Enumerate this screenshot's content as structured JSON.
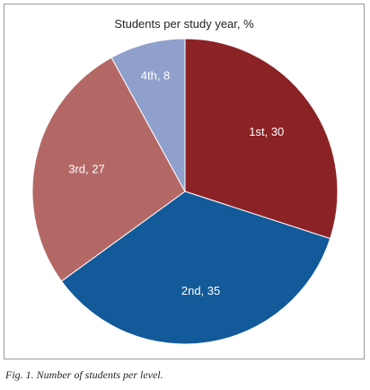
{
  "chart_data": {
    "type": "pie",
    "title": "Students per study year, %",
    "slices": [
      {
        "label": "1st",
        "value": 30,
        "display": "1st, 30",
        "color": "#8b2326",
        "text_color": "#ffffff"
      },
      {
        "label": "2nd",
        "value": 35,
        "display": "2nd, 35",
        "color": "#125a99",
        "text_color": "#ffffff"
      },
      {
        "label": "3rd",
        "value": 27,
        "display": "3rd, 27",
        "color": "#b46866",
        "text_color": "#ffffff"
      },
      {
        "label": "4th",
        "value": 8,
        "display": "4th, 8",
        "color": "#8fa0cc",
        "text_color": "#ffffff"
      }
    ],
    "start_angle_deg": 0,
    "direction": "clockwise",
    "legend": "none"
  },
  "caption": "Fig. 1. Number of students per level."
}
